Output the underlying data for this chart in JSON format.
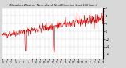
{
  "title": "Milwaukee Weather Normalized Wind Direction (Last 24 Hours)",
  "background_color": "#d8d8d8",
  "plot_bg_color": "#ffffff",
  "line_color": "#dd0000",
  "line_width": 0.4,
  "ylim": [
    -7,
    6
  ],
  "yticks": [
    6,
    4,
    2,
    0,
    -2,
    -4,
    -6
  ],
  "num_points": 288,
  "seed": 42
}
